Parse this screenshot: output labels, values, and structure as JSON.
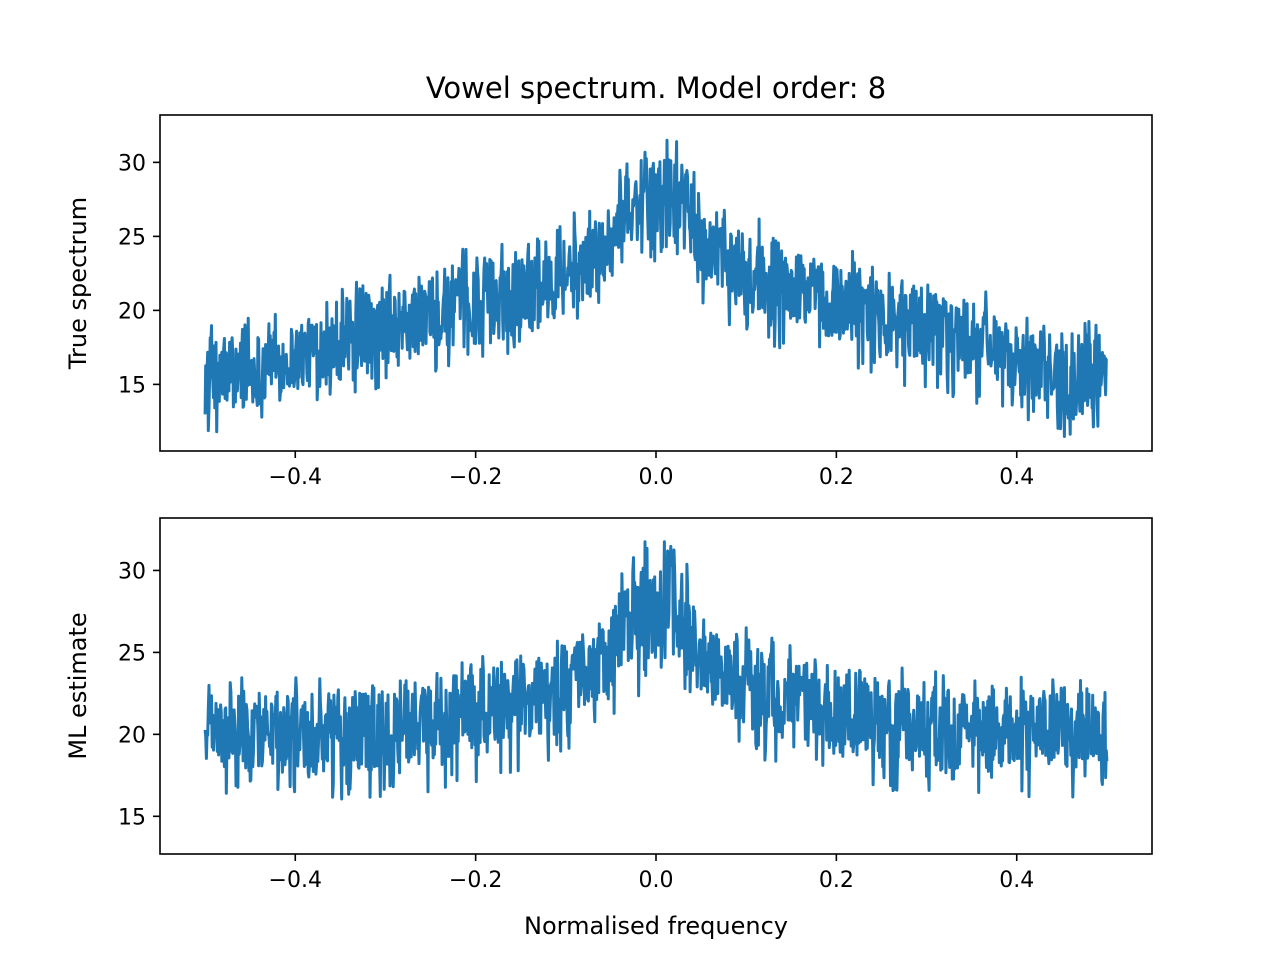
{
  "figure": {
    "title": "Vowel spectrum. Model order: 8",
    "xlabel": "Normalised frequency"
  },
  "chart_data": [
    {
      "type": "line",
      "name": "top",
      "ylabel": "True spectrum",
      "xlim": [
        -0.55,
        0.55
      ],
      "ylim": [
        10.5,
        33.2
      ],
      "xticks": [
        -0.4,
        -0.2,
        0.0,
        0.2,
        0.4
      ],
      "xtick_labels": [
        "−0.4",
        "−0.2",
        "0.0",
        "0.2",
        "0.4"
      ],
      "yticks": [
        15,
        20,
        25,
        30
      ],
      "ytick_labels": [
        "15",
        "20",
        "25",
        "30"
      ],
      "color": "#1f77b4",
      "series": [
        {
          "x": [
            -0.5,
            -0.45,
            -0.4,
            -0.35,
            -0.3,
            -0.25,
            -0.2,
            -0.15,
            -0.1,
            -0.075,
            -0.05,
            -0.04,
            -0.03,
            -0.02,
            -0.01,
            0.0,
            0.01,
            0.02,
            0.03,
            0.04,
            0.05,
            0.075,
            0.1,
            0.15,
            0.2,
            0.25,
            0.3,
            0.35,
            0.4,
            0.45,
            0.5
          ],
          "upper": [
            18.3,
            18.8,
            19.3,
            21.0,
            21.5,
            22.6,
            23.5,
            24.5,
            25.6,
            25.9,
            27.4,
            29.2,
            29.8,
            30.8,
            31.4,
            29.5,
            31.4,
            30.8,
            29.8,
            29.2,
            27.4,
            25.9,
            25.6,
            24.5,
            23.5,
            22.6,
            21.5,
            21.0,
            19.3,
            18.8,
            18.3
          ],
          "lower": [
            13.0,
            12.9,
            14.4,
            15.2,
            15.9,
            16.8,
            17.6,
            18.5,
            19.6,
            20.8,
            22.1,
            23.5,
            24.2,
            24.0,
            23.6,
            23.5,
            23.6,
            24.0,
            24.2,
            23.5,
            22.1,
            20.8,
            19.6,
            18.5,
            17.6,
            16.8,
            15.9,
            15.2,
            14.4,
            12.9,
            13.0
          ]
        }
      ]
    },
    {
      "type": "line",
      "name": "bottom",
      "ylabel": "ML estimate",
      "xlim": [
        -0.55,
        0.55
      ],
      "ylim": [
        12.7,
        33.2
      ],
      "xticks": [
        -0.4,
        -0.2,
        0.0,
        0.2,
        0.4
      ],
      "xtick_labels": [
        "−0.4",
        "−0.2",
        "0.0",
        "0.2",
        "0.4"
      ],
      "yticks": [
        15,
        20,
        25,
        30
      ],
      "ytick_labels": [
        "15",
        "20",
        "25",
        "30"
      ],
      "color": "#1f77b4",
      "series": [
        {
          "x": [
            -0.5,
            -0.45,
            -0.4,
            -0.35,
            -0.3,
            -0.25,
            -0.2,
            -0.15,
            -0.1,
            -0.075,
            -0.05,
            -0.04,
            -0.03,
            -0.02,
            -0.01,
            0.0,
            0.01,
            0.02,
            0.03,
            0.04,
            0.05,
            0.075,
            0.1,
            0.15,
            0.2,
            0.25,
            0.3,
            0.35,
            0.4,
            0.45,
            0.5
          ],
          "upper": [
            22.4,
            22.6,
            22.7,
            23.2,
            23.0,
            23.4,
            24.2,
            24.9,
            25.7,
            25.9,
            27.4,
            29.2,
            29.8,
            30.8,
            31.4,
            29.5,
            31.4,
            30.8,
            29.8,
            29.2,
            27.4,
            25.9,
            25.7,
            24.9,
            24.2,
            23.4,
            23.0,
            23.2,
            22.7,
            22.6,
            22.4
          ],
          "lower": [
            18.2,
            17.5,
            17.7,
            17.4,
            17.6,
            18.0,
            18.6,
            19.2,
            20.1,
            21.0,
            22.3,
            23.4,
            24.1,
            23.8,
            23.6,
            23.5,
            23.6,
            23.8,
            24.1,
            23.4,
            22.3,
            21.0,
            20.1,
            19.2,
            18.6,
            18.0,
            17.6,
            17.4,
            17.7,
            17.5,
            18.2
          ]
        }
      ]
    }
  ]
}
